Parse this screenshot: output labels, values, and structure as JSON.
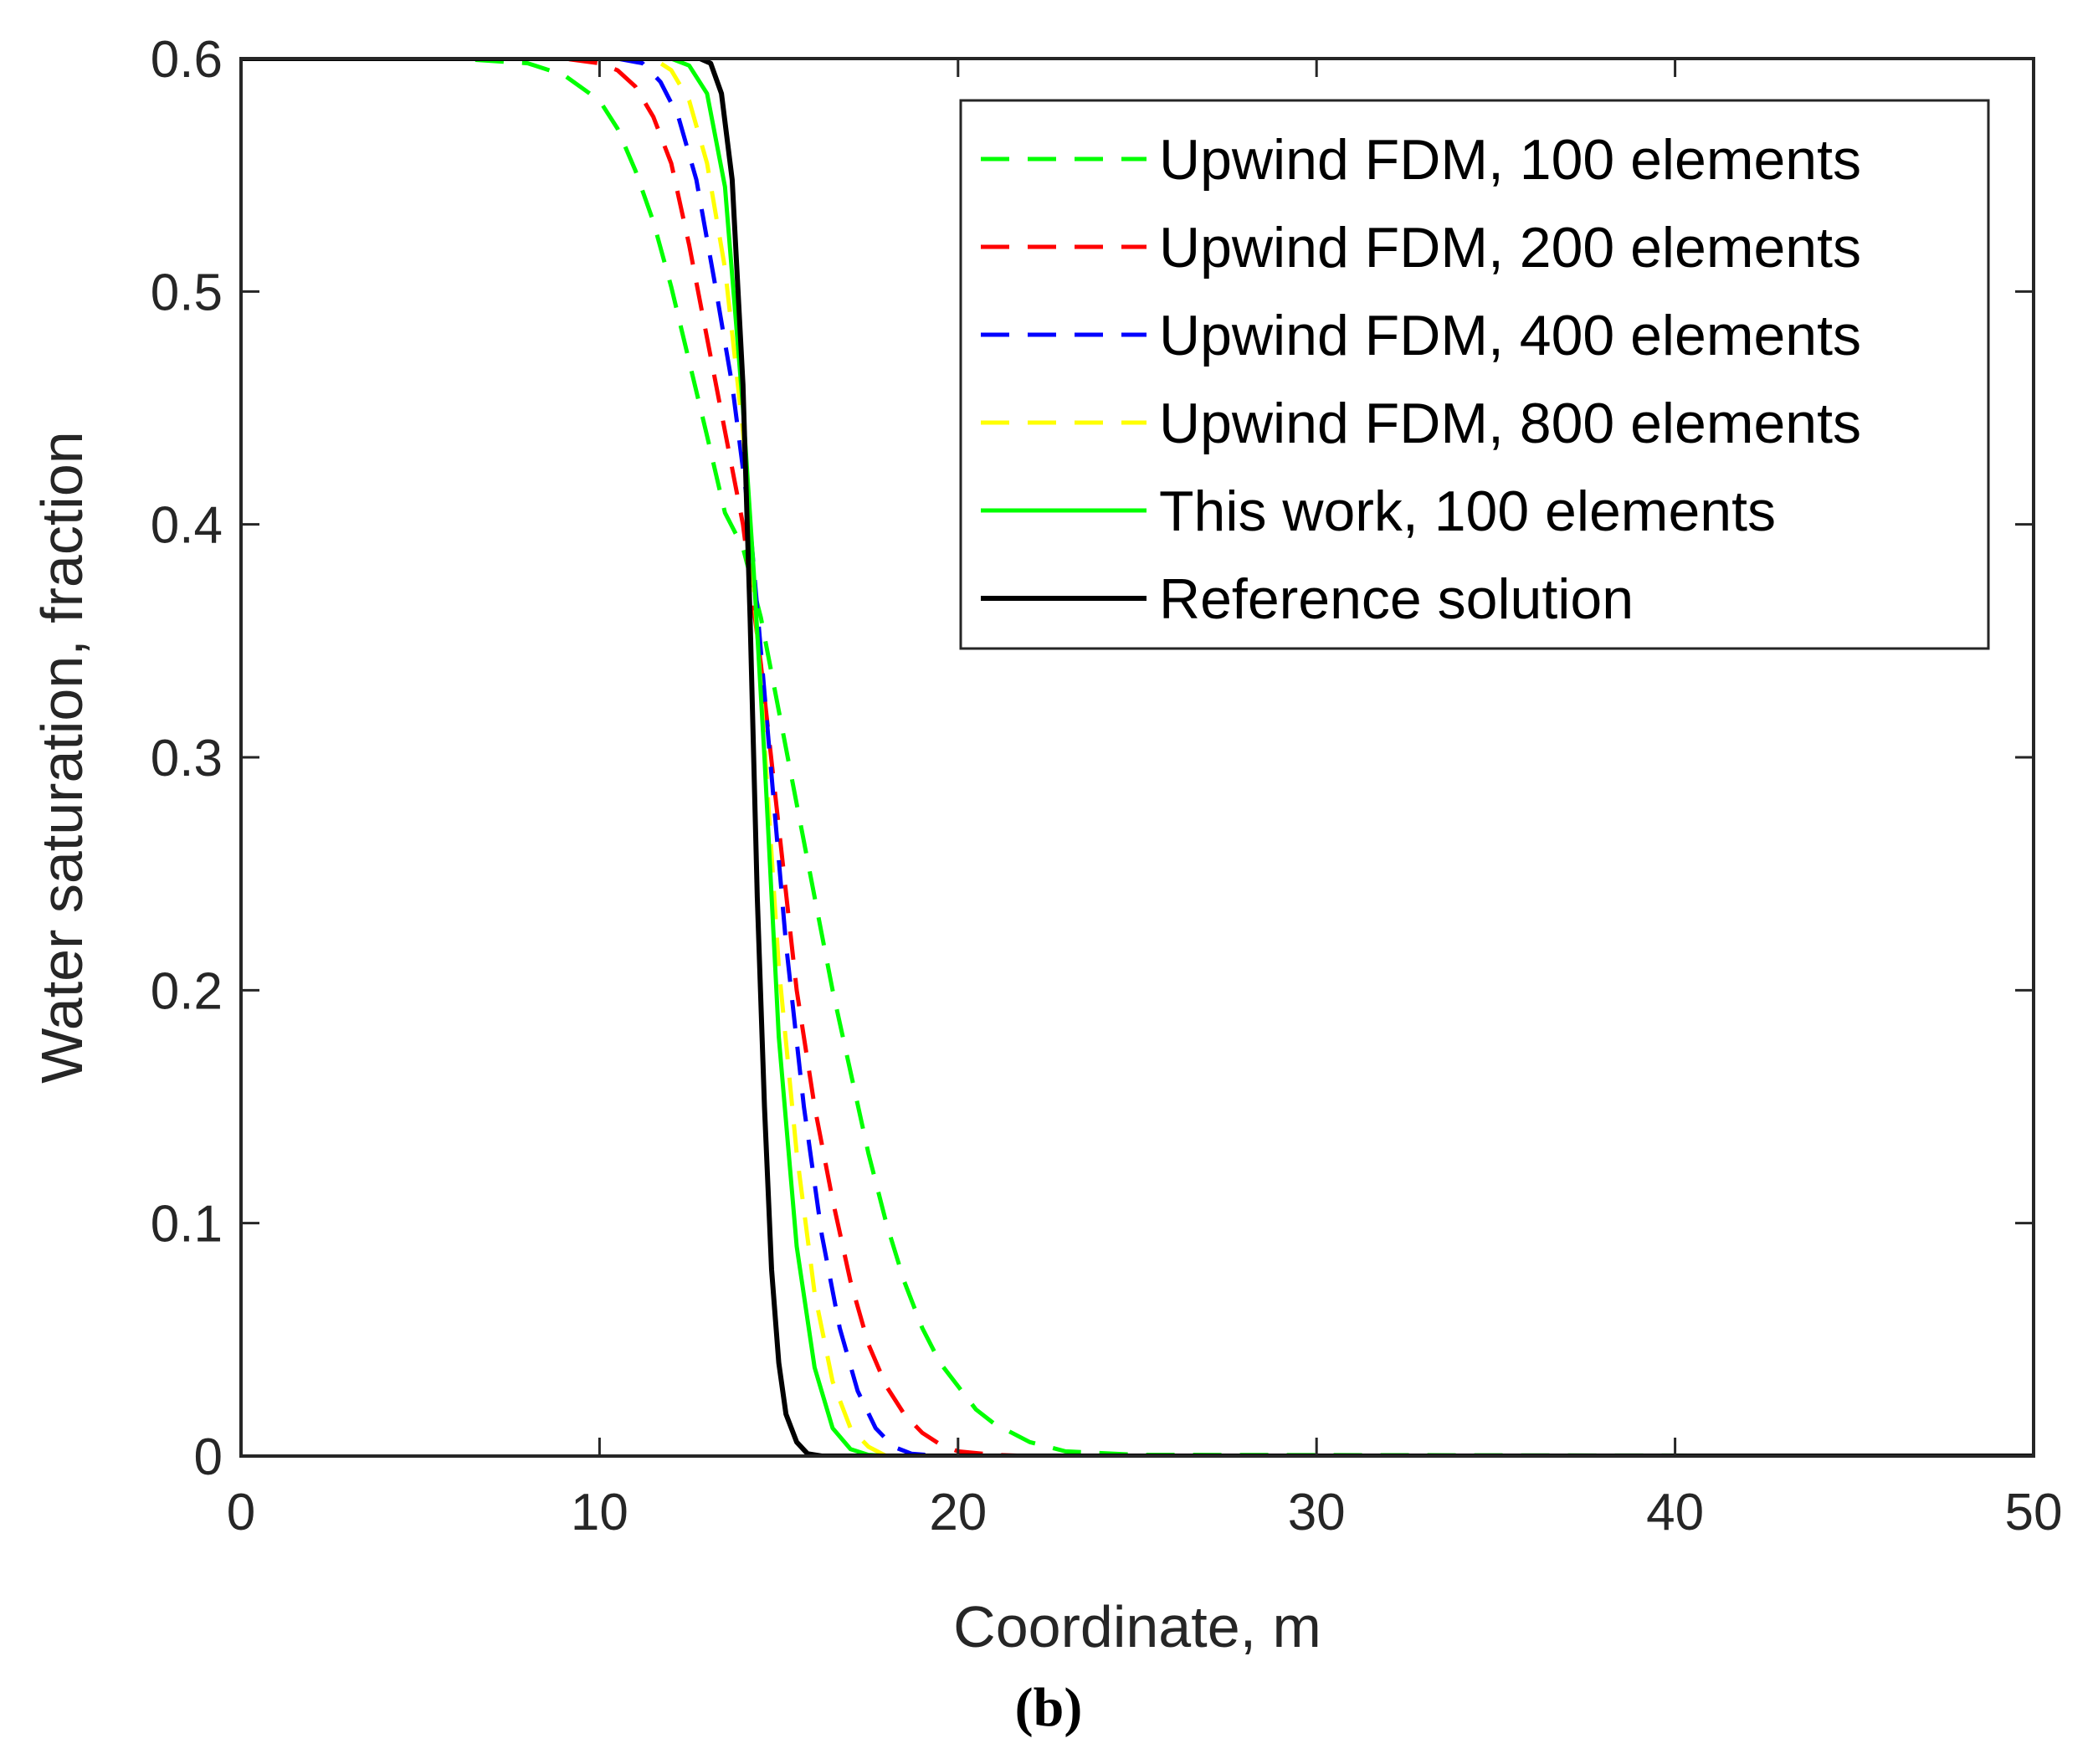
{
  "chart_data": {
    "type": "line",
    "title": "",
    "xlabel": "Coordinate, m",
    "ylabel": "Water saturation, fraction",
    "caption": "(b)",
    "xlim": [
      0,
      50
    ],
    "ylim": [
      0,
      0.6
    ],
    "xticks": [
      0,
      10,
      20,
      30,
      40,
      50
    ],
    "yticks": [
      0,
      0.1,
      0.2,
      0.3,
      0.4,
      0.5,
      0.6
    ],
    "xtick_labels": [
      "0",
      "10",
      "20",
      "30",
      "40",
      "50"
    ],
    "ytick_labels": [
      "0",
      "0.1",
      "0.2",
      "0.3",
      "0.4",
      "0.5",
      "0.6"
    ],
    "grid": false,
    "legend_position": "top-right",
    "series": [
      {
        "name": "Upwind FDM, 100 elements",
        "color": "#00ff00",
        "dash": "dashed",
        "x": [
          0,
          6,
          8,
          9,
          10,
          10.5,
          11,
          11.5,
          12,
          12.5,
          13,
          13.5,
          14,
          14.5,
          15,
          15.5,
          16,
          16.5,
          17,
          17.5,
          18,
          18.5,
          19,
          19.5,
          20,
          20.5,
          21,
          22,
          23,
          25,
          50
        ],
        "values": [
          0.6,
          0.6,
          0.598,
          0.593,
          0.582,
          0.57,
          0.552,
          0.53,
          0.502,
          0.47,
          0.438,
          0.405,
          0.39,
          0.36,
          0.32,
          0.28,
          0.24,
          0.2,
          0.165,
          0.13,
          0.1,
          0.075,
          0.055,
          0.04,
          0.03,
          0.02,
          0.014,
          0.006,
          0.002,
          0.0005,
          0
        ]
      },
      {
        "name": "Upwind FDM, 200 elements",
        "color": "#ff0000",
        "dash": "dashed",
        "x": [
          0,
          9,
          10,
          10.5,
          11,
          11.5,
          12,
          12.5,
          13,
          13.5,
          14,
          14.5,
          15,
          15.5,
          16,
          16.5,
          17,
          17.5,
          18,
          18.5,
          19,
          19.5,
          20,
          21,
          22,
          50
        ],
        "values": [
          0.6,
          0.6,
          0.598,
          0.595,
          0.588,
          0.575,
          0.555,
          0.52,
          0.48,
          0.44,
          0.4,
          0.34,
          0.27,
          0.2,
          0.15,
          0.11,
          0.075,
          0.048,
          0.03,
          0.018,
          0.01,
          0.005,
          0.002,
          0.0005,
          0,
          0
        ]
      },
      {
        "name": "Upwind FDM, 400 elements",
        "color": "#0000ff",
        "dash": "dashed",
        "x": [
          0,
          10.5,
          11.2,
          11.7,
          12.2,
          12.7,
          13.2,
          13.7,
          14.2,
          14.7,
          15.2,
          15.7,
          16.2,
          16.7,
          17.2,
          17.7,
          18.2,
          18.7,
          19.5,
          50
        ],
        "values": [
          0.6,
          0.6,
          0.598,
          0.59,
          0.575,
          0.548,
          0.505,
          0.46,
          0.4,
          0.31,
          0.22,
          0.15,
          0.095,
          0.055,
          0.028,
          0.012,
          0.004,
          0.001,
          0,
          0
        ]
      },
      {
        "name": "Upwind FDM, 800 elements",
        "color": "#ffff00",
        "dash": "dashed",
        "x": [
          0,
          11.5,
          12,
          12.5,
          13,
          13.5,
          14,
          14.5,
          15,
          15.5,
          16,
          16.5,
          17,
          17.5,
          18,
          50
        ],
        "values": [
          0.6,
          0.6,
          0.595,
          0.582,
          0.555,
          0.51,
          0.44,
          0.33,
          0.21,
          0.13,
          0.07,
          0.032,
          0.012,
          0.004,
          0,
          0
        ]
      },
      {
        "name": "This work, 100 elements",
        "color": "#00ff00",
        "dash": "solid",
        "x": [
          0,
          12,
          12.5,
          13,
          13.5,
          14,
          14.3,
          14.6,
          15,
          15.5,
          16,
          16.5,
          17,
          17.5,
          18,
          50
        ],
        "values": [
          0.6,
          0.6,
          0.597,
          0.585,
          0.545,
          0.45,
          0.38,
          0.3,
          0.18,
          0.09,
          0.038,
          0.012,
          0.003,
          0.0005,
          0,
          0
        ]
      },
      {
        "name": "Reference solution",
        "color": "#000000",
        "dash": "solid",
        "x": [
          0,
          12.8,
          13.1,
          13.4,
          13.7,
          14,
          14.2,
          14.4,
          14.6,
          14.8,
          15.0,
          15.2,
          15.5,
          15.8,
          16.2,
          50
        ],
        "values": [
          0.6,
          0.6,
          0.598,
          0.585,
          0.548,
          0.46,
          0.36,
          0.24,
          0.15,
          0.08,
          0.04,
          0.018,
          0.006,
          0.001,
          0,
          0
        ]
      }
    ]
  }
}
